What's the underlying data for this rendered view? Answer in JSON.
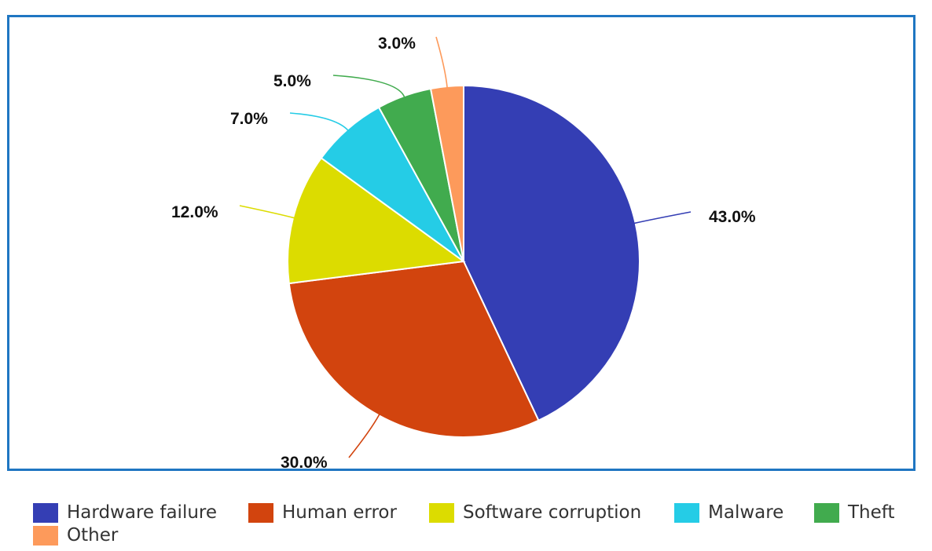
{
  "chart_data": {
    "type": "pie",
    "categories": [
      "Hardware failure",
      "Human error",
      "Software corruption",
      "Malware",
      "Theft",
      "Other"
    ],
    "values": [
      43.0,
      30.0,
      12.0,
      7.0,
      5.0,
      3.0
    ],
    "value_labels": [
      "43.0%",
      "30.0%",
      "12.0%",
      "7.0%",
      "5.0%",
      "3.0%"
    ],
    "colors": [
      "#343eb4",
      "#d2440e",
      "#dcdc00",
      "#25cce6",
      "#41ab4e",
      "#fd9a5b"
    ],
    "start_angle": "12 o'clock",
    "direction": "clockwise",
    "legend_position": "bottom",
    "title": "",
    "xlabel": "",
    "ylabel": ""
  }
}
